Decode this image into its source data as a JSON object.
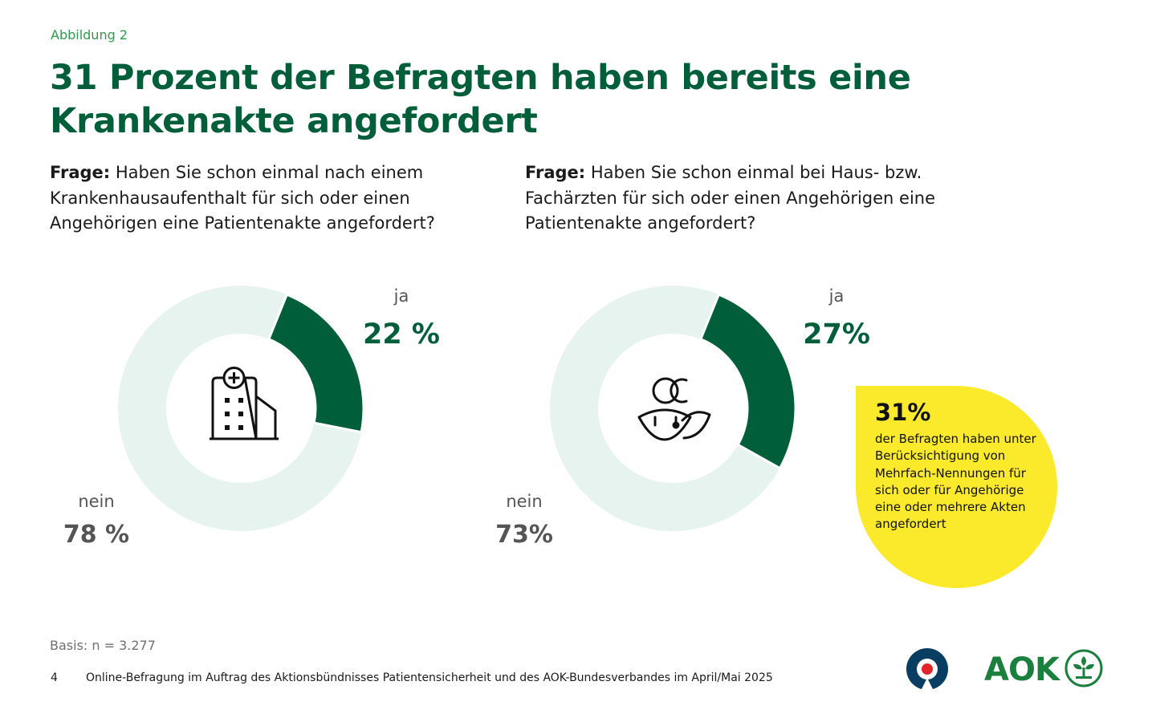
{
  "header": {
    "figure_label": "Abbildung 2",
    "title": "31 Prozent der Befragten haben bereits eine Krankenakte angefordert"
  },
  "questions": [
    {
      "prefix": "Frage:",
      "text": "Haben Sie schon einmal nach einem Krankenhausaufenthalt für sich oder einen Angehörigen eine Patientenakte angefordert?"
    },
    {
      "prefix": "Frage:",
      "text": "Haben Sie schon einmal bei Haus- bzw. Fachärzten für sich oder einen Angehörigen eine Patientenakte angefordert?"
    }
  ],
  "chart_data": [
    {
      "type": "pie",
      "variant": "donut",
      "icon": "hospital-icon",
      "categories": [
        "ja",
        "nein"
      ],
      "values": [
        22,
        78
      ],
      "value_labels": [
        "22 %",
        "78 %"
      ],
      "colors": [
        "#005e3a",
        "#e7f3ef"
      ]
    },
    {
      "type": "pie",
      "variant": "donut",
      "icon": "doctor-patient-icon",
      "categories": [
        "ja",
        "nein"
      ],
      "values": [
        27,
        73
      ],
      "value_labels": [
        "27%",
        "73%"
      ],
      "colors": [
        "#005e3a",
        "#e7f3ef"
      ]
    }
  ],
  "callout": {
    "value": "31%",
    "text": "der Befragten haben unter Berücksichtigung von Mehrfach-Nennungen für sich oder für Angehörige eine oder mehrere Akten angefordert",
    "color": "#fbea2b"
  },
  "footer": {
    "basis": "Basis: n = 3.277",
    "page_number": "4",
    "source": "Online-Befragung im Auftrag des Aktionsbündnisses Patientensicherheit und des AOK-Bundesverbandes im April/Mai 2025",
    "aok_logo_text": "AOK"
  },
  "colors": {
    "accent_green": "#005e3a",
    "label_green": "#2f9a4a",
    "ring_light": "#e7f3ef",
    "highlight_yellow": "#fbea2b"
  }
}
